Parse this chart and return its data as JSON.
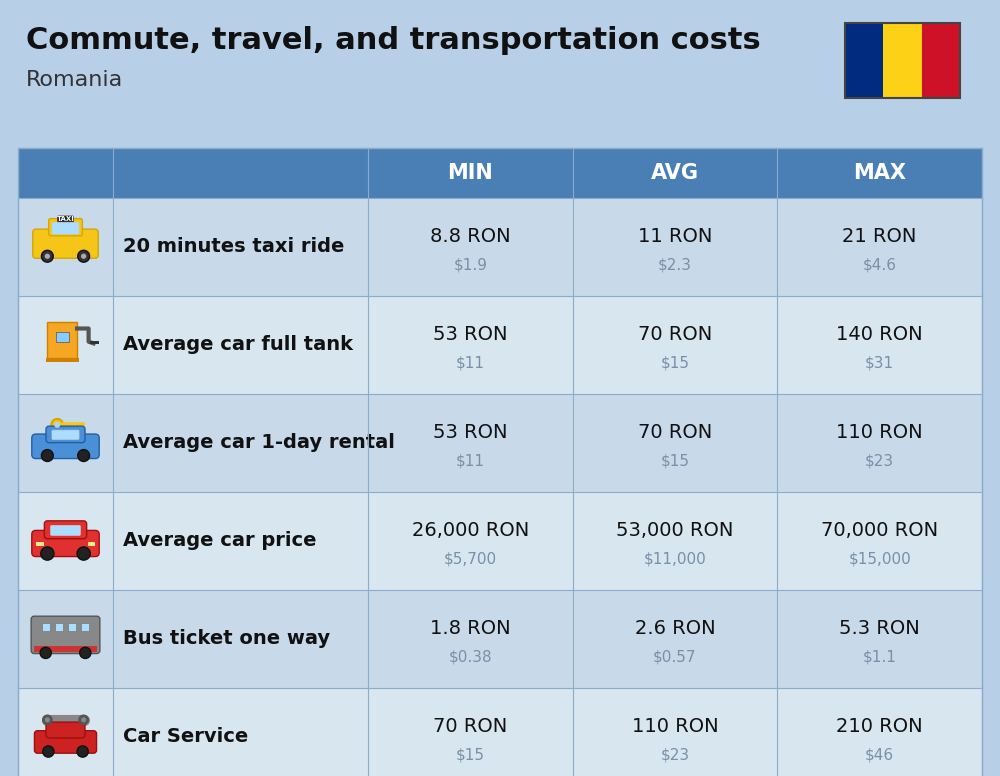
{
  "title": "Commute, travel, and transportation costs",
  "subtitle": "Romania",
  "background_color": "#b8cfe8",
  "header_bg_color": "#4a7fb5",
  "header_text_color": "#ffffff",
  "row_bg_colors": [
    "#c8daea",
    "#d8e6f0"
  ],
  "label_text_color": "#111111",
  "value_text_color": "#111111",
  "subvalue_text_color": "#7a8fa8",
  "columns": [
    "MIN",
    "AVG",
    "MAX"
  ],
  "rows": [
    {
      "label": "20 minutes taxi ride",
      "min_ron": "8.8 RON",
      "min_usd": "$1.9",
      "avg_ron": "11 RON",
      "avg_usd": "$2.3",
      "max_ron": "21 RON",
      "max_usd": "$4.6"
    },
    {
      "label": "Average car full tank",
      "min_ron": "53 RON",
      "min_usd": "$11",
      "avg_ron": "70 RON",
      "avg_usd": "$15",
      "max_ron": "140 RON",
      "max_usd": "$31"
    },
    {
      "label": "Average car 1-day rental",
      "min_ron": "53 RON",
      "min_usd": "$11",
      "avg_ron": "70 RON",
      "avg_usd": "$15",
      "max_ron": "110 RON",
      "max_usd": "$23"
    },
    {
      "label": "Average car price",
      "min_ron": "26,000 RON",
      "min_usd": "$5,700",
      "avg_ron": "53,000 RON",
      "avg_usd": "$11,000",
      "max_ron": "70,000 RON",
      "max_usd": "$15,000"
    },
    {
      "label": "Bus ticket one way",
      "min_ron": "1.8 RON",
      "min_usd": "$0.38",
      "avg_ron": "2.6 RON",
      "avg_usd": "$0.57",
      "max_ron": "5.3 RON",
      "max_usd": "$1.1"
    },
    {
      "label": "Car Service",
      "min_ron": "70 RON",
      "min_usd": "$15",
      "avg_ron": "110 RON",
      "avg_usd": "$23",
      "max_ron": "210 RON",
      "max_usd": "$46"
    }
  ],
  "flag_colors": [
    "#002B7F",
    "#FCD116",
    "#CE1126"
  ],
  "icon_colors": [
    {
      "body": "#F5C518",
      "accent": "#888888"
    },
    {
      "body": "#F5A623",
      "accent": "#E07000"
    },
    {
      "body": "#4A90D9",
      "accent": "#F5C518"
    },
    {
      "body": "#E03030",
      "accent": "#C02020"
    },
    {
      "body": "#888888",
      "accent": "#CC3333"
    },
    {
      "body": "#888888",
      "accent": "#CC2222"
    }
  ]
}
